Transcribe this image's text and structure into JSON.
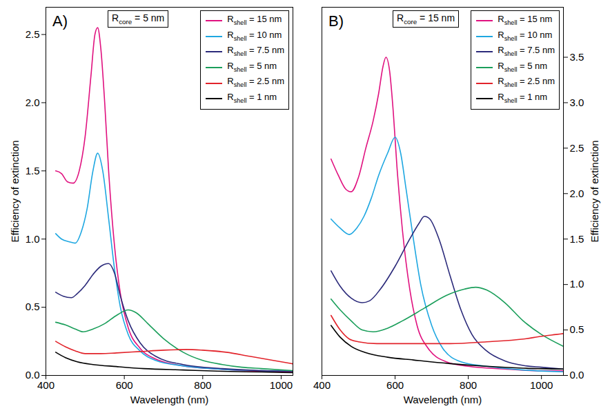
{
  "chart_data": [
    {
      "type": "line",
      "panel_label": "A)",
      "annotation": "Rcore = 5 nm",
      "x_label": "Wavelength (nm)",
      "y_label": "Efficiency of extinction",
      "xlim": [
        400,
        1030
      ],
      "xticks": [
        400,
        600,
        800,
        1000
      ],
      "ylim": [
        0,
        2.7
      ],
      "yticks": [
        {
          "value": 0,
          "label": "0.0"
        },
        0.5,
        {
          "value": 1,
          "label": "1.0"
        },
        1.5,
        {
          "value": 2,
          "label": "2.0"
        },
        2.5
      ],
      "legend": "top-right",
      "series": [
        {
          "name": "Rshell = 15 nm",
          "color": "#e0117f",
          "x": [
            425,
            440,
            455,
            470,
            485,
            500,
            515,
            525,
            532,
            540,
            550,
            560,
            575,
            590,
            610,
            640,
            680,
            750,
            850,
            950,
            1030
          ],
          "values": [
            1.5,
            1.48,
            1.42,
            1.41,
            1.5,
            1.75,
            2.2,
            2.5,
            2.55,
            2.4,
            2.0,
            1.5,
            0.95,
            0.6,
            0.35,
            0.2,
            0.12,
            0.07,
            0.045,
            0.03,
            0.025
          ]
        },
        {
          "name": "Rshell = 10 nm",
          "color": "#1ea7e1",
          "x": [
            425,
            440,
            460,
            475,
            490,
            505,
            520,
            532,
            545,
            560,
            575,
            590,
            610,
            640,
            680,
            750,
            850,
            950,
            1030
          ],
          "values": [
            1.04,
            1.0,
            0.98,
            0.97,
            1.05,
            1.22,
            1.5,
            1.63,
            1.5,
            1.15,
            0.78,
            0.5,
            0.3,
            0.18,
            0.11,
            0.07,
            0.045,
            0.035,
            0.03
          ]
        },
        {
          "name": "Rshell = 7.5 nm",
          "color": "#2b2a7a",
          "x": [
            425,
            445,
            465,
            480,
            500,
            520,
            540,
            560,
            575,
            590,
            610,
            640,
            680,
            750,
            850,
            950,
            1030
          ],
          "values": [
            0.61,
            0.58,
            0.57,
            0.6,
            0.66,
            0.74,
            0.8,
            0.82,
            0.75,
            0.58,
            0.4,
            0.24,
            0.14,
            0.08,
            0.05,
            0.035,
            0.03
          ]
        },
        {
          "name": "Rshell = 5 nm",
          "color": "#1a9e5a",
          "x": [
            425,
            450,
            475,
            495,
            520,
            550,
            580,
            610,
            630,
            660,
            700,
            750,
            800,
            850,
            900,
            950,
            1030
          ],
          "values": [
            0.39,
            0.37,
            0.34,
            0.32,
            0.34,
            0.38,
            0.44,
            0.48,
            0.46,
            0.38,
            0.27,
            0.17,
            0.11,
            0.08,
            0.06,
            0.05,
            0.035
          ]
        },
        {
          "name": "Rshell = 2.5 nm",
          "color": "#e2232a",
          "x": [
            425,
            450,
            475,
            500,
            540,
            580,
            640,
            700,
            760,
            800,
            860,
            920,
            980,
            1030
          ],
          "values": [
            0.25,
            0.21,
            0.18,
            0.16,
            0.16,
            0.165,
            0.175,
            0.185,
            0.19,
            0.185,
            0.17,
            0.14,
            0.11,
            0.085
          ]
        },
        {
          "name": "Rshell = 1 nm",
          "color": "#000000",
          "x": [
            425,
            450,
            480,
            520,
            580,
            650,
            750,
            850,
            950,
            1030
          ],
          "values": [
            0.17,
            0.13,
            0.1,
            0.08,
            0.065,
            0.05,
            0.04,
            0.03,
            0.025,
            0.02
          ]
        }
      ]
    },
    {
      "type": "line",
      "panel_label": "B)",
      "annotation": "Rcore = 15 nm",
      "x_label": "Wavelength (nm)",
      "y_label": "Efficiency of extinction",
      "xlim": [
        400,
        1060
      ],
      "xticks": [
        400,
        600,
        800,
        1000
      ],
      "ylim": [
        0,
        4.05
      ],
      "yticks": [
        {
          "value": 0,
          "label": "0.0"
        },
        0.5,
        {
          "value": 1,
          "label": "1.0"
        },
        1.5,
        {
          "value": 2,
          "label": "2.0"
        },
        2.5,
        {
          "value": 3,
          "label": "3.0"
        },
        3.5
      ],
      "legend": "top-right",
      "series": [
        {
          "name": "Rshell = 15 nm",
          "color": "#e0117f",
          "x": [
            425,
            445,
            465,
            480,
            500,
            520,
            540,
            555,
            567,
            575,
            585,
            595,
            605,
            620,
            640,
            660,
            690,
            740,
            800,
            900,
            1000,
            1060
          ],
          "values": [
            2.38,
            2.2,
            2.05,
            2.02,
            2.18,
            2.5,
            2.8,
            3.1,
            3.4,
            3.5,
            3.35,
            2.9,
            2.3,
            1.6,
            0.95,
            0.55,
            0.3,
            0.15,
            0.1,
            0.07,
            0.05,
            0.05
          ]
        },
        {
          "name": "Rshell = 10 nm",
          "color": "#1ea7e1",
          "x": [
            425,
            450,
            475,
            495,
            515,
            535,
            555,
            580,
            600,
            615,
            630,
            650,
            670,
            700,
            730,
            780,
            850,
            950,
            1060
          ],
          "values": [
            1.72,
            1.62,
            1.55,
            1.62,
            1.75,
            1.95,
            2.2,
            2.45,
            2.62,
            2.45,
            2.05,
            1.5,
            1.0,
            0.55,
            0.3,
            0.15,
            0.1,
            0.06,
            0.04
          ]
        },
        {
          "name": "Rshell = 7.5 nm",
          "color": "#2b2a7a",
          "x": [
            425,
            450,
            480,
            510,
            530,
            560,
            600,
            640,
            665,
            680,
            695,
            720,
            750,
            780,
            810,
            850,
            900,
            950,
            1000,
            1060
          ],
          "values": [
            1.15,
            0.98,
            0.85,
            0.8,
            0.82,
            0.95,
            1.2,
            1.5,
            1.67,
            1.75,
            1.72,
            1.5,
            1.1,
            0.72,
            0.45,
            0.27,
            0.16,
            0.11,
            0.09,
            0.07
          ]
        },
        {
          "name": "Rshell = 5 nm",
          "color": "#1a9e5a",
          "x": [
            425,
            450,
            480,
            510,
            540,
            580,
            620,
            680,
            740,
            790,
            820,
            850,
            900,
            950,
            1000,
            1060
          ],
          "values": [
            0.84,
            0.72,
            0.6,
            0.5,
            0.48,
            0.52,
            0.6,
            0.74,
            0.88,
            0.95,
            0.97,
            0.94,
            0.8,
            0.6,
            0.45,
            0.32
          ]
        },
        {
          "name": "Rshell = 2.5 nm",
          "color": "#e2232a",
          "x": [
            425,
            450,
            475,
            500,
            550,
            650,
            750,
            850,
            950,
            1000,
            1040,
            1060
          ],
          "values": [
            0.66,
            0.5,
            0.4,
            0.37,
            0.35,
            0.35,
            0.35,
            0.37,
            0.4,
            0.43,
            0.45,
            0.46
          ]
        },
        {
          "name": "Rshell = 1 nm",
          "color": "#000000",
          "x": [
            425,
            450,
            480,
            520,
            580,
            650,
            750,
            850,
            950,
            1060
          ],
          "values": [
            0.55,
            0.42,
            0.32,
            0.25,
            0.2,
            0.17,
            0.13,
            0.1,
            0.08,
            0.07
          ]
        }
      ]
    }
  ]
}
